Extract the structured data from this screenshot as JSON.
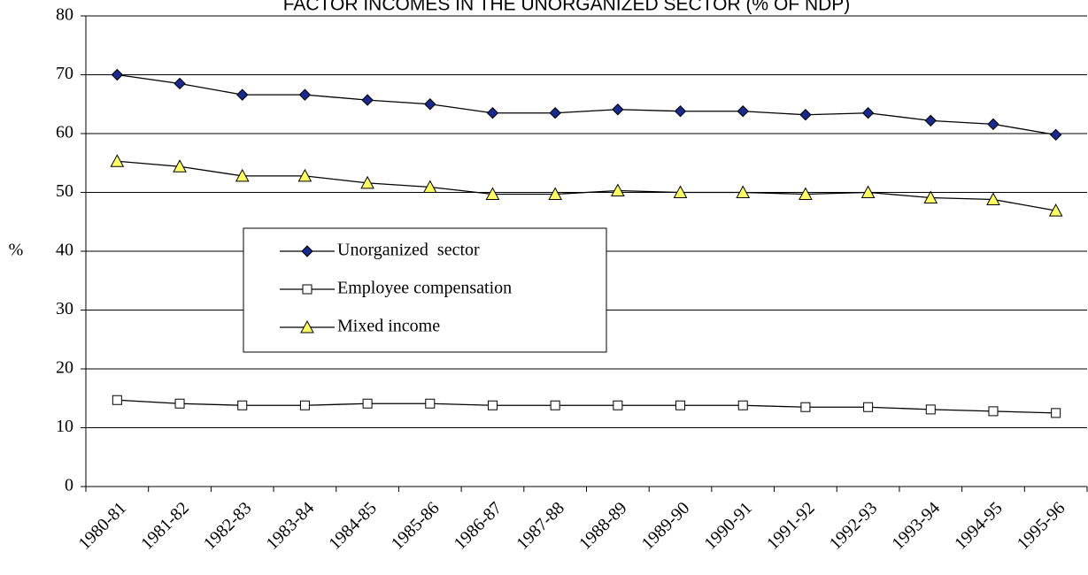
{
  "chart_data": {
    "type": "line",
    "title": "FACTOR INCOMES IN THE UNORGANIZED SECTOR (% OF NDP)",
    "y_label": "%",
    "categories": [
      "1980-81",
      "1981-82",
      "1982-83",
      "1983-84",
      "1984-85",
      "1985-86",
      "1986-87",
      "1987-88",
      "1988-89",
      "1989-90",
      "1990-91",
      "1991-92",
      "1992-93",
      "1993-94",
      "1994-95",
      "1995-96"
    ],
    "series": [
      {
        "name": "Unorganized  sector",
        "color": "#1a2a8c",
        "marker": "diamond",
        "values": [
          70,
          68.5,
          66.6,
          66.6,
          65.7,
          65,
          63.5,
          63.5,
          64.1,
          63.8,
          63.8,
          63.2,
          63.5,
          62.2,
          61.6,
          59.8
        ]
      },
      {
        "name": "Employee compensation",
        "color": "#ffffff",
        "marker": "square",
        "values": [
          14.7,
          14.1,
          13.8,
          13.8,
          14.1,
          14.1,
          13.8,
          13.8,
          13.8,
          13.8,
          13.8,
          13.5,
          13.5,
          13.1,
          12.8,
          12.5
        ]
      },
      {
        "name": "Mixed income",
        "color": "#ffff66",
        "marker": "triangle",
        "values": [
          55.3,
          54.4,
          52.8,
          52.8,
          51.6,
          50.9,
          49.7,
          49.7,
          50.3,
          50.0,
          50.0,
          49.7,
          50.0,
          49.1,
          48.8,
          46.9
        ]
      }
    ],
    "ylim": [
      0,
      80
    ],
    "yticks": [
      0,
      10,
      20,
      30,
      40,
      50,
      60,
      70,
      80
    ],
    "grid": true
  }
}
